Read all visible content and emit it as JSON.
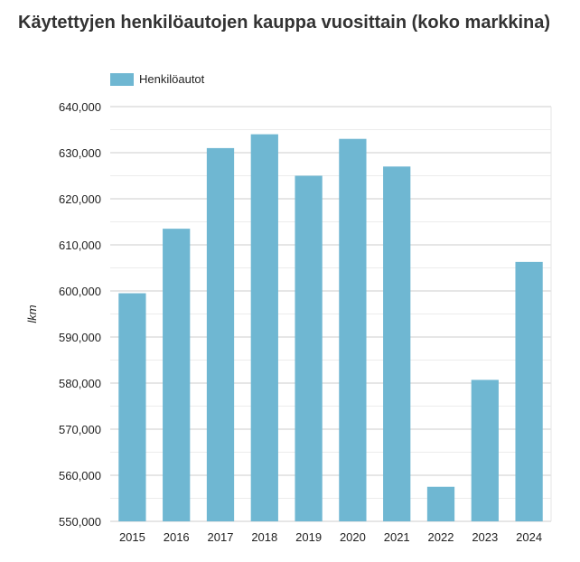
{
  "chart_data": {
    "type": "bar",
    "title": "Käytettyjen henkilöautojen kauppa vuosittain (koko markkina)",
    "xlabel": "",
    "ylabel": "lkm",
    "categories": [
      "2015",
      "2016",
      "2017",
      "2018",
      "2019",
      "2020",
      "2021",
      "2022",
      "2023",
      "2024"
    ],
    "series": [
      {
        "name": "Henkilöautot",
        "color": "#6fb7d2",
        "values": [
          599500,
          613500,
          631000,
          634000,
          625000,
          633000,
          627000,
          557500,
          580700,
          606300
        ]
      }
    ],
    "ylim": [
      550000,
      640000
    ],
    "yticks": [
      550000,
      560000,
      570000,
      580000,
      590000,
      600000,
      610000,
      620000,
      630000,
      640000
    ],
    "ytick_labels": [
      "550,000",
      "560,000",
      "570,000",
      "580,000",
      "590,000",
      "600,000",
      "610,000",
      "620,000",
      "630,000",
      "640,000"
    ],
    "grid": true,
    "legend_position": "top-left"
  }
}
